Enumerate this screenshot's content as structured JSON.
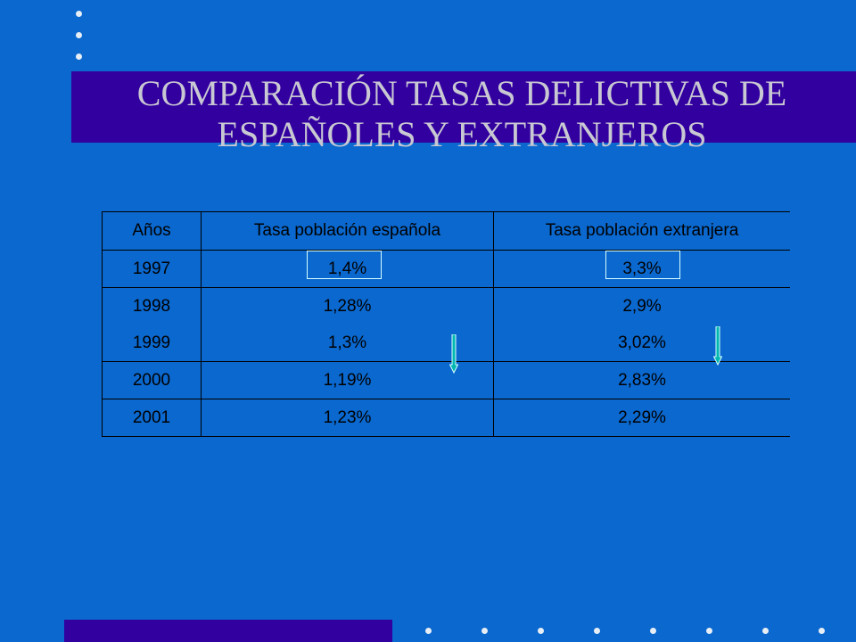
{
  "slide": {
    "title_line1": "COMPARACIÓN TASAS DELICTIVAS DE",
    "title_line2": "ESPAÑOLES Y EXTRANJEROS"
  },
  "table": {
    "headers": [
      "Años",
      "Tasa población española",
      "Tasa población extranjera"
    ],
    "rows": [
      [
        "1997",
        "1,4%",
        "3,3%"
      ],
      [
        "1998",
        "1,28%",
        "2,9%"
      ],
      [
        "1999",
        "1,3%",
        "3,02%"
      ],
      [
        "2000",
        "1,19%",
        "2,83%"
      ],
      [
        "2001",
        "1,23%",
        "2,29%"
      ]
    ]
  },
  "colors": {
    "background": "#0a68cf",
    "band": "#3300a0",
    "title_text": "#c8c8d2",
    "highlight_outline": "#d8ffff",
    "arrow_fill": "#00b8b0"
  }
}
